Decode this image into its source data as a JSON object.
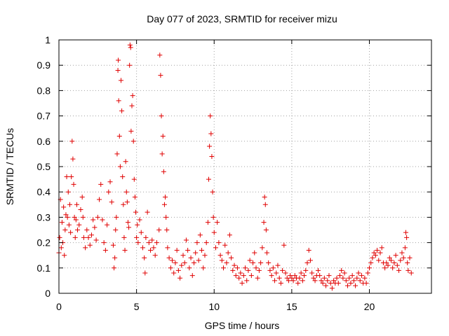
{
  "chart_data": {
    "type": "scatter",
    "title": "Day 077 of 2023, SRMTID for receiver mizu",
    "xlabel": "GPS time / hours",
    "ylabel": "SRMTID / TECUs",
    "xlim": [
      0,
      24
    ],
    "ylim": [
      0,
      1
    ],
    "xticks": [
      0,
      5,
      10,
      15,
      20
    ],
    "xtick_labels": [
      "0",
      "5",
      "10",
      "15",
      "20"
    ],
    "yticks": [
      0,
      0.1,
      0.2,
      0.3,
      0.4,
      0.5,
      0.6,
      0.7,
      0.8,
      0.9,
      1
    ],
    "ytick_labels": [
      "0",
      "0.1",
      "0.2",
      "0.3",
      "0.4",
      "0.5",
      "0.6",
      "0.7",
      "0.8",
      "0.9",
      "1"
    ],
    "grid": true,
    "marker": "plus",
    "color": "#e00000",
    "series": [
      {
        "name": "SRMTID",
        "points": [
          [
            0.0,
            0.16
          ],
          [
            0.05,
            0.22
          ],
          [
            0.1,
            0.37
          ],
          [
            0.15,
            0.18
          ],
          [
            0.2,
            0.28
          ],
          [
            0.25,
            0.2
          ],
          [
            0.3,
            0.34
          ],
          [
            0.35,
            0.15
          ],
          [
            0.4,
            0.25
          ],
          [
            0.45,
            0.31
          ],
          [
            0.5,
            0.46
          ],
          [
            0.55,
            0.3
          ],
          [
            0.6,
            0.4
          ],
          [
            0.65,
            0.27
          ],
          [
            0.7,
            0.35
          ],
          [
            0.75,
            0.24
          ],
          [
            0.8,
            0.46
          ],
          [
            0.85,
            0.6
          ],
          [
            0.9,
            0.53
          ],
          [
            0.95,
            0.43
          ],
          [
            1.0,
            0.3
          ],
          [
            1.05,
            0.22
          ],
          [
            1.1,
            0.29
          ],
          [
            1.15,
            0.35
          ],
          [
            1.2,
            0.25
          ],
          [
            1.3,
            0.27
          ],
          [
            1.4,
            0.33
          ],
          [
            1.5,
            0.38
          ],
          [
            1.55,
            0.3
          ],
          [
            1.6,
            0.22
          ],
          [
            1.7,
            0.18
          ],
          [
            1.8,
            0.25
          ],
          [
            1.9,
            0.22
          ],
          [
            2.0,
            0.19
          ],
          [
            2.1,
            0.23
          ],
          [
            2.2,
            0.29
          ],
          [
            2.3,
            0.26
          ],
          [
            2.4,
            0.21
          ],
          [
            2.5,
            0.3
          ],
          [
            2.6,
            0.37
          ],
          [
            2.7,
            0.43
          ],
          [
            2.8,
            0.29
          ],
          [
            2.9,
            0.2
          ],
          [
            3.0,
            0.17
          ],
          [
            3.1,
            0.27
          ],
          [
            3.2,
            0.4
          ],
          [
            3.3,
            0.44
          ],
          [
            3.4,
            0.36
          ],
          [
            3.5,
            0.19
          ],
          [
            3.55,
            0.1
          ],
          [
            3.6,
            0.14
          ],
          [
            3.65,
            0.25
          ],
          [
            3.7,
            0.3
          ],
          [
            3.75,
            0.55
          ],
          [
            3.8,
            0.88
          ],
          [
            3.82,
            0.92
          ],
          [
            3.85,
            0.76
          ],
          [
            3.9,
            0.62
          ],
          [
            3.95,
            0.5
          ],
          [
            4.0,
            0.84
          ],
          [
            4.05,
            0.72
          ],
          [
            4.1,
            0.46
          ],
          [
            4.15,
            0.35
          ],
          [
            4.2,
            0.22
          ],
          [
            4.25,
            0.17
          ],
          [
            4.3,
            0.52
          ],
          [
            4.35,
            0.4
          ],
          [
            4.4,
            0.36
          ],
          [
            4.45,
            0.28
          ],
          [
            4.5,
            0.26
          ],
          [
            4.55,
            0.9
          ],
          [
            4.58,
            0.98
          ],
          [
            4.62,
            0.97
          ],
          [
            4.65,
            0.64
          ],
          [
            4.7,
            0.74
          ],
          [
            4.75,
            0.78
          ],
          [
            4.8,
            0.6
          ],
          [
            4.85,
            0.45
          ],
          [
            4.9,
            0.38
          ],
          [
            4.95,
            0.32
          ],
          [
            5.0,
            0.22
          ],
          [
            5.05,
            0.27
          ],
          [
            5.1,
            0.2
          ],
          [
            5.2,
            0.29
          ],
          [
            5.3,
            0.24
          ],
          [
            5.4,
            0.18
          ],
          [
            5.5,
            0.14
          ],
          [
            5.55,
            0.08
          ],
          [
            5.6,
            0.22
          ],
          [
            5.7,
            0.32
          ],
          [
            5.8,
            0.2
          ],
          [
            5.9,
            0.17
          ],
          [
            6.0,
            0.21
          ],
          [
            6.1,
            0.18
          ],
          [
            6.2,
            0.15
          ],
          [
            6.3,
            0.2
          ],
          [
            6.45,
            0.25
          ],
          [
            6.5,
            0.94
          ],
          [
            6.55,
            0.86
          ],
          [
            6.6,
            0.7
          ],
          [
            6.65,
            0.55
          ],
          [
            6.7,
            0.62
          ],
          [
            6.75,
            0.48
          ],
          [
            6.8,
            0.35
          ],
          [
            6.85,
            0.38
          ],
          [
            6.9,
            0.3
          ],
          [
            6.95,
            0.25
          ],
          [
            7.0,
            0.18
          ],
          [
            7.1,
            0.14
          ],
          [
            7.2,
            0.1
          ],
          [
            7.3,
            0.13
          ],
          [
            7.4,
            0.08
          ],
          [
            7.5,
            0.12
          ],
          [
            7.6,
            0.17
          ],
          [
            7.7,
            0.09
          ],
          [
            7.8,
            0.06
          ],
          [
            7.9,
            0.11
          ],
          [
            8.0,
            0.15
          ],
          [
            8.1,
            0.12
          ],
          [
            8.2,
            0.21
          ],
          [
            8.3,
            0.17
          ],
          [
            8.4,
            0.1
          ],
          [
            8.5,
            0.14
          ],
          [
            8.6,
            0.07
          ],
          [
            8.7,
            0.12
          ],
          [
            8.8,
            0.16
          ],
          [
            8.9,
            0.2
          ],
          [
            9.0,
            0.13
          ],
          [
            9.1,
            0.23
          ],
          [
            9.2,
            0.17
          ],
          [
            9.3,
            0.1
          ],
          [
            9.4,
            0.15
          ],
          [
            9.5,
            0.2
          ],
          [
            9.6,
            0.28
          ],
          [
            9.65,
            0.45
          ],
          [
            9.7,
            0.58
          ],
          [
            9.75,
            0.7
          ],
          [
            9.8,
            0.63
          ],
          [
            9.85,
            0.54
          ],
          [
            9.9,
            0.4
          ],
          [
            9.95,
            0.3
          ],
          [
            10.0,
            0.24
          ],
          [
            10.1,
            0.18
          ],
          [
            10.2,
            0.28
          ],
          [
            10.3,
            0.2
          ],
          [
            10.4,
            0.15
          ],
          [
            10.5,
            0.13
          ],
          [
            10.6,
            0.1
          ],
          [
            10.7,
            0.19
          ],
          [
            10.8,
            0.12
          ],
          [
            10.9,
            0.16
          ],
          [
            11.0,
            0.23
          ],
          [
            11.1,
            0.14
          ],
          [
            11.2,
            0.09
          ],
          [
            11.3,
            0.11
          ],
          [
            11.4,
            0.07
          ],
          [
            11.5,
            0.1
          ],
          [
            11.6,
            0.06
          ],
          [
            11.7,
            0.08
          ],
          [
            11.8,
            0.04
          ],
          [
            11.9,
            0.07
          ],
          [
            12.0,
            0.1
          ],
          [
            12.1,
            0.05
          ],
          [
            12.2,
            0.09
          ],
          [
            12.3,
            0.13
          ],
          [
            12.4,
            0.07
          ],
          [
            12.5,
            0.12
          ],
          [
            12.6,
            0.16
          ],
          [
            12.7,
            0.1
          ],
          [
            12.8,
            0.06
          ],
          [
            12.9,
            0.09
          ],
          [
            13.0,
            0.12
          ],
          [
            13.1,
            0.18
          ],
          [
            13.2,
            0.28
          ],
          [
            13.25,
            0.38
          ],
          [
            13.3,
            0.35
          ],
          [
            13.35,
            0.25
          ],
          [
            13.4,
            0.16
          ],
          [
            13.5,
            0.12
          ],
          [
            13.6,
            0.09
          ],
          [
            13.7,
            0.07
          ],
          [
            13.8,
            0.1
          ],
          [
            13.9,
            0.05
          ],
          [
            14.0,
            0.08
          ],
          [
            14.1,
            0.11
          ],
          [
            14.2,
            0.06
          ],
          [
            14.3,
            0.04
          ],
          [
            14.4,
            0.09
          ],
          [
            14.5,
            0.19
          ],
          [
            14.6,
            0.08
          ],
          [
            14.7,
            0.06
          ],
          [
            14.8,
            0.05
          ],
          [
            14.9,
            0.07
          ],
          [
            15.0,
            0.06
          ],
          [
            15.1,
            0.05
          ],
          [
            15.2,
            0.07
          ],
          [
            15.3,
            0.06
          ],
          [
            15.4,
            0.04
          ],
          [
            15.5,
            0.06
          ],
          [
            15.6,
            0.08
          ],
          [
            15.7,
            0.05
          ],
          [
            15.8,
            0.07
          ],
          [
            15.9,
            0.09
          ],
          [
            16.0,
            0.12
          ],
          [
            16.1,
            0.17
          ],
          [
            16.2,
            0.13
          ],
          [
            16.3,
            0.08
          ],
          [
            16.4,
            0.06
          ],
          [
            16.5,
            0.05
          ],
          [
            16.6,
            0.07
          ],
          [
            16.7,
            0.09
          ],
          [
            16.8,
            0.07
          ],
          [
            16.9,
            0.05
          ],
          [
            17.0,
            0.04
          ],
          [
            17.1,
            0.06
          ],
          [
            17.2,
            0.03
          ],
          [
            17.3,
            0.05
          ],
          [
            17.4,
            0.07
          ],
          [
            17.5,
            0.04
          ],
          [
            17.6,
            0.02
          ],
          [
            17.7,
            0.05
          ],
          [
            17.8,
            0.04
          ],
          [
            17.9,
            0.06
          ],
          [
            18.0,
            0.04
          ],
          [
            18.1,
            0.07
          ],
          [
            18.2,
            0.09
          ],
          [
            18.3,
            0.06
          ],
          [
            18.4,
            0.08
          ],
          [
            18.5,
            0.05
          ],
          [
            18.6,
            0.03
          ],
          [
            18.7,
            0.06
          ],
          [
            18.8,
            0.04
          ],
          [
            18.9,
            0.07
          ],
          [
            19.0,
            0.05
          ],
          [
            19.1,
            0.03
          ],
          [
            19.2,
            0.06
          ],
          [
            19.3,
            0.08
          ],
          [
            19.4,
            0.05
          ],
          [
            19.5,
            0.07
          ],
          [
            19.6,
            0.04
          ],
          [
            19.7,
            0.06
          ],
          [
            19.8,
            0.04
          ],
          [
            19.9,
            0.08
          ],
          [
            20.0,
            0.1
          ],
          [
            20.1,
            0.12
          ],
          [
            20.2,
            0.14
          ],
          [
            20.3,
            0.16
          ],
          [
            20.4,
            0.15
          ],
          [
            20.5,
            0.17
          ],
          [
            20.6,
            0.13
          ],
          [
            20.7,
            0.16
          ],
          [
            20.8,
            0.18
          ],
          [
            20.9,
            0.12
          ],
          [
            21.0,
            0.1
          ],
          [
            21.1,
            0.12
          ],
          [
            21.2,
            0.11
          ],
          [
            21.3,
            0.14
          ],
          [
            21.4,
            0.13
          ],
          [
            21.5,
            0.1
          ],
          [
            21.6,
            0.12
          ],
          [
            21.7,
            0.15
          ],
          [
            21.8,
            0.11
          ],
          [
            21.9,
            0.09
          ],
          [
            22.0,
            0.13
          ],
          [
            22.1,
            0.16
          ],
          [
            22.2,
            0.14
          ],
          [
            22.3,
            0.18
          ],
          [
            22.35,
            0.24
          ],
          [
            22.4,
            0.22
          ],
          [
            22.45,
            0.12
          ],
          [
            22.5,
            0.09
          ],
          [
            22.6,
            0.14
          ],
          [
            22.7,
            0.08
          ]
        ]
      }
    ]
  }
}
